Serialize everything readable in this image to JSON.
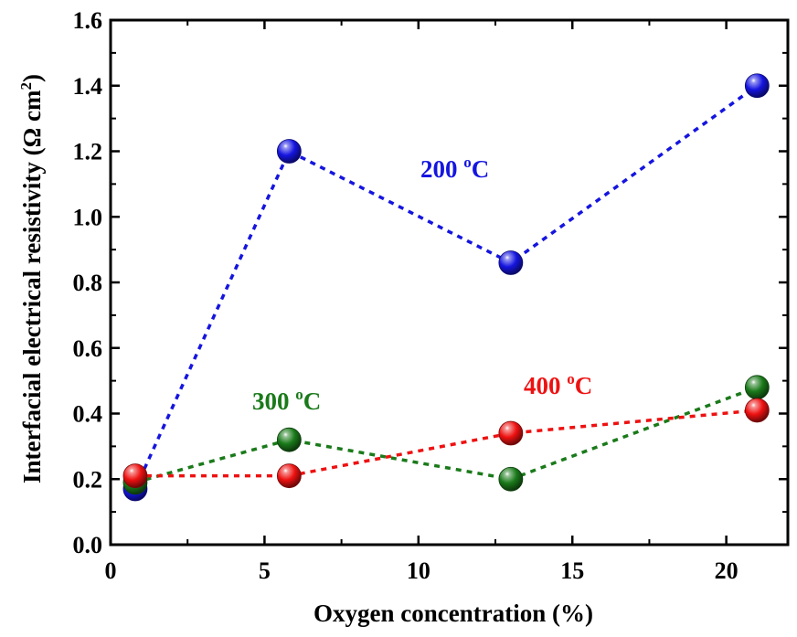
{
  "chart_data": {
    "type": "scatter",
    "xlabel": "Oxygen concentration (%)",
    "ylabel": "Interfacial electrical resistivity (Ω cm²)",
    "ylabel_main": "Interfacial electrical resistivity (Ω cm",
    "ylabel_sup": "2",
    "ylabel_tail": ")",
    "xlim": [
      0,
      22
    ],
    "ylim": [
      0,
      1.6
    ],
    "xticks": [
      0,
      5,
      10,
      15,
      20
    ],
    "xtick_labels": [
      "0",
      "5",
      "10",
      "15",
      "20"
    ],
    "yticks": [
      0.0,
      0.2,
      0.4,
      0.6,
      0.8,
      1.0,
      1.2,
      1.4,
      1.6
    ],
    "ytick_labels": [
      "0.0",
      "0.2",
      "0.4",
      "0.6",
      "0.8",
      "1.0",
      "1.2",
      "1.4",
      "1.6"
    ],
    "grid": false,
    "line_style": "dotted",
    "series": [
      {
        "name": "200 °C",
        "label_main": "200 ",
        "label_sup": "o",
        "label_tail": "C",
        "color": "#1515e0",
        "x": [
          0.8,
          5.8,
          13,
          21
        ],
        "y": [
          0.17,
          1.2,
          0.86,
          1.4
        ]
      },
      {
        "name": "300 °C",
        "label_main": "300 ",
        "label_sup": "o",
        "label_tail": "C",
        "color": "#1a7a1a",
        "x": [
          0.8,
          5.8,
          13,
          21
        ],
        "y": [
          0.19,
          0.32,
          0.2,
          0.48
        ]
      },
      {
        "name": "400 °C",
        "label_main": "400 ",
        "label_sup": "o",
        "label_tail": "C",
        "color": "#ee1111",
        "x": [
          0.8,
          5.8,
          13,
          21
        ],
        "y": [
          0.21,
          0.21,
          0.34,
          0.41
        ]
      }
    ]
  }
}
